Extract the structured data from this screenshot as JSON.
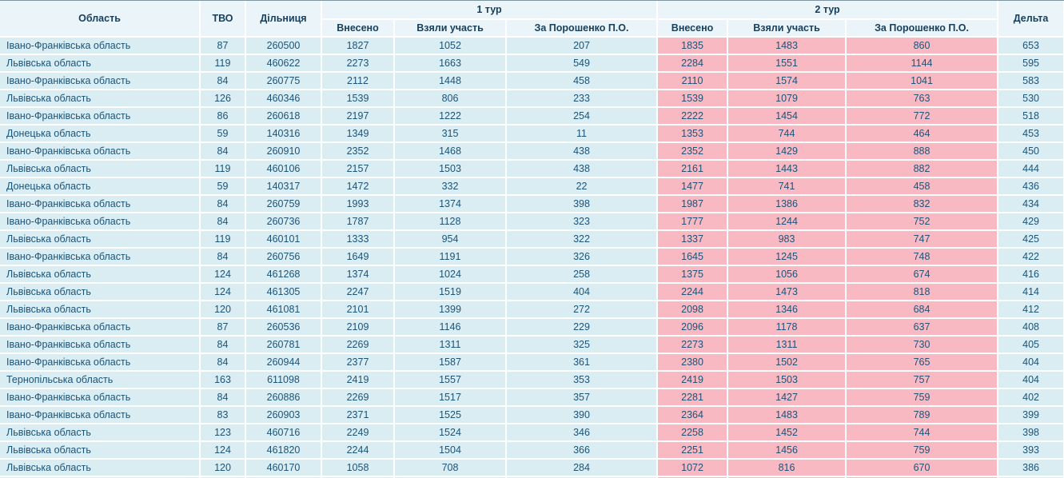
{
  "colors": {
    "header_bg": "#ebf4f8",
    "header_text": "#163e5d",
    "row_bg": "#d9edf3",
    "round2_cell_bg": "#f8b9c3",
    "text": "#1d5377",
    "separator": "#ffffff"
  },
  "chart_data": {
    "type": "table",
    "headers": {
      "region": "Область",
      "tvo": "ТВО",
      "station": "Дільниця",
      "round1": "1 тур",
      "round2": "2 тур",
      "delta": "Дельта",
      "entered": "Внесено",
      "participated": "Взяли участь",
      "poroshenko": "За Порошенко П.О."
    },
    "columns": [
      "Область",
      "ТВО",
      "Дільниця",
      "1 тур Внесено",
      "1 тур Взяли участь",
      "1 тур За Порошенко П.О.",
      "2 тур Внесено",
      "2 тур Взяли участь",
      "2 тур За Порошенко П.О.",
      "Дельта"
    ],
    "rows": [
      [
        "Івано-Франківська область",
        87,
        260500,
        1827,
        1052,
        207,
        1835,
        1483,
        860,
        653
      ],
      [
        "Львівська область",
        119,
        460622,
        2273,
        1663,
        549,
        2284,
        1551,
        1144,
        595
      ],
      [
        "Івано-Франківська область",
        84,
        260775,
        2112,
        1448,
        458,
        2110,
        1574,
        1041,
        583
      ],
      [
        "Львівська область",
        126,
        460346,
        1539,
        806,
        233,
        1539,
        1079,
        763,
        530
      ],
      [
        "Івано-Франківська область",
        86,
        260618,
        2197,
        1222,
        254,
        2222,
        1454,
        772,
        518
      ],
      [
        "Донецька область",
        59,
        140316,
        1349,
        315,
        11,
        1353,
        744,
        464,
        453
      ],
      [
        "Івано-Франківська область",
        84,
        260910,
        2352,
        1468,
        438,
        2352,
        1429,
        888,
        450
      ],
      [
        "Львівська область",
        119,
        460106,
        2157,
        1503,
        438,
        2161,
        1443,
        882,
        444
      ],
      [
        "Донецька область",
        59,
        140317,
        1472,
        332,
        22,
        1477,
        741,
        458,
        436
      ],
      [
        "Івано-Франківська область",
        84,
        260759,
        1993,
        1374,
        398,
        1987,
        1386,
        832,
        434
      ],
      [
        "Івано-Франківська область",
        84,
        260736,
        1787,
        1128,
        323,
        1777,
        1244,
        752,
        429
      ],
      [
        "Львівська область",
        119,
        460101,
        1333,
        954,
        322,
        1337,
        983,
        747,
        425
      ],
      [
        "Івано-Франківська область",
        84,
        260756,
        1649,
        1191,
        326,
        1645,
        1245,
        748,
        422
      ],
      [
        "Львівська область",
        124,
        461268,
        1374,
        1024,
        258,
        1375,
        1056,
        674,
        416
      ],
      [
        "Львівська область",
        124,
        461305,
        2247,
        1519,
        404,
        2244,
        1473,
        818,
        414
      ],
      [
        "Львівська область",
        120,
        461081,
        2101,
        1399,
        272,
        2098,
        1346,
        684,
        412
      ],
      [
        "Івано-Франківська область",
        87,
        260536,
        2109,
        1146,
        229,
        2096,
        1178,
        637,
        408
      ],
      [
        "Івано-Франківська область",
        84,
        260781,
        2269,
        1311,
        325,
        2273,
        1311,
        730,
        405
      ],
      [
        "Івано-Франківська область",
        84,
        260944,
        2377,
        1587,
        361,
        2380,
        1502,
        765,
        404
      ],
      [
        "Тернопільська область",
        163,
        611098,
        2419,
        1557,
        353,
        2419,
        1503,
        757,
        404
      ],
      [
        "Івано-Франківська область",
        84,
        260886,
        2269,
        1517,
        357,
        2281,
        1427,
        759,
        402
      ],
      [
        "Івано-Франківська область",
        83,
        260903,
        2371,
        1525,
        390,
        2364,
        1483,
        789,
        399
      ],
      [
        "Львівська область",
        123,
        460716,
        2249,
        1524,
        346,
        2258,
        1452,
        744,
        398
      ],
      [
        "Львівська область",
        124,
        461820,
        2244,
        1504,
        366,
        2251,
        1456,
        759,
        393
      ],
      [
        "Львівська область",
        120,
        460170,
        1058,
        708,
        284,
        1072,
        816,
        670,
        386
      ]
    ]
  }
}
